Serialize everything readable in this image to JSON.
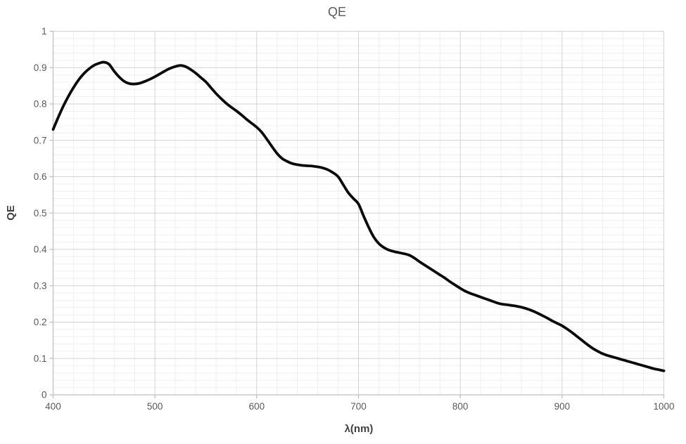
{
  "window": {
    "background": "#ffffff"
  },
  "chart_data": {
    "type": "line",
    "title": "QE",
    "xlabel": "λ(nm)",
    "ylabel": "QE",
    "xlim": [
      400,
      1000
    ],
    "ylim": [
      0,
      1
    ],
    "x_major_step": 100,
    "x_minor_step": 20,
    "y_major_step": 0.1,
    "y_minor_step": 0.02,
    "x_tick_labels": [
      "400",
      "500",
      "600",
      "700",
      "800",
      "900",
      "1000"
    ],
    "y_tick_labels": [
      "0",
      "0.1",
      "0.2",
      "0.3",
      "0.4",
      "0.5",
      "0.6",
      "0.7",
      "0.8",
      "0.9",
      "1"
    ],
    "grid": {
      "major": true,
      "minor": true
    },
    "legend": "none",
    "colors": {
      "curve": "#0b0b0b",
      "major_grid": "#d2d2d2",
      "minor_grid": "#efefef",
      "axis": "#bfbfbf",
      "tick_text": "#595959",
      "title_text": "#595959",
      "axis_title_text": "#404040"
    },
    "series": [
      {
        "name": "QE",
        "x": [
          400,
          405,
          410,
          415,
          420,
          425,
          430,
          435,
          440,
          445,
          450,
          455,
          460,
          465,
          470,
          475,
          480,
          485,
          490,
          495,
          500,
          505,
          510,
          515,
          520,
          525,
          530,
          535,
          540,
          545,
          550,
          555,
          560,
          565,
          570,
          575,
          580,
          585,
          590,
          595,
          600,
          605,
          610,
          615,
          620,
          625,
          630,
          635,
          640,
          645,
          650,
          655,
          660,
          665,
          670,
          675,
          680,
          685,
          690,
          695,
          700,
          705,
          710,
          715,
          720,
          725,
          730,
          735,
          740,
          745,
          750,
          755,
          760,
          765,
          770,
          775,
          780,
          785,
          790,
          795,
          800,
          805,
          810,
          815,
          820,
          825,
          830,
          835,
          840,
          845,
          850,
          855,
          860,
          865,
          870,
          875,
          880,
          885,
          890,
          895,
          900,
          905,
          910,
          915,
          920,
          925,
          930,
          935,
          940,
          945,
          950,
          955,
          960,
          965,
          970,
          975,
          980,
          985,
          990,
          995,
          1000
        ],
        "y": [
          0.73,
          0.763,
          0.794,
          0.821,
          0.845,
          0.866,
          0.883,
          0.896,
          0.906,
          0.912,
          0.915,
          0.909,
          0.89,
          0.874,
          0.862,
          0.856,
          0.855,
          0.857,
          0.862,
          0.868,
          0.875,
          0.883,
          0.891,
          0.898,
          0.903,
          0.906,
          0.903,
          0.895,
          0.885,
          0.873,
          0.861,
          0.845,
          0.829,
          0.815,
          0.802,
          0.791,
          0.781,
          0.77,
          0.758,
          0.747,
          0.736,
          0.722,
          0.703,
          0.683,
          0.664,
          0.65,
          0.642,
          0.636,
          0.633,
          0.631,
          0.63,
          0.629,
          0.627,
          0.624,
          0.619,
          0.611,
          0.6,
          0.578,
          0.556,
          0.54,
          0.525,
          0.492,
          0.461,
          0.434,
          0.416,
          0.405,
          0.398,
          0.394,
          0.391,
          0.388,
          0.384,
          0.376,
          0.366,
          0.357,
          0.348,
          0.339,
          0.33,
          0.321,
          0.311,
          0.302,
          0.293,
          0.285,
          0.279,
          0.274,
          0.269,
          0.264,
          0.259,
          0.254,
          0.25,
          0.248,
          0.246,
          0.244,
          0.241,
          0.237,
          0.232,
          0.226,
          0.219,
          0.212,
          0.204,
          0.197,
          0.19,
          0.181,
          0.171,
          0.16,
          0.149,
          0.138,
          0.128,
          0.12,
          0.113,
          0.108,
          0.104,
          0.1,
          0.096,
          0.092,
          0.088,
          0.084,
          0.08,
          0.076,
          0.072,
          0.069,
          0.066
        ]
      }
    ]
  }
}
